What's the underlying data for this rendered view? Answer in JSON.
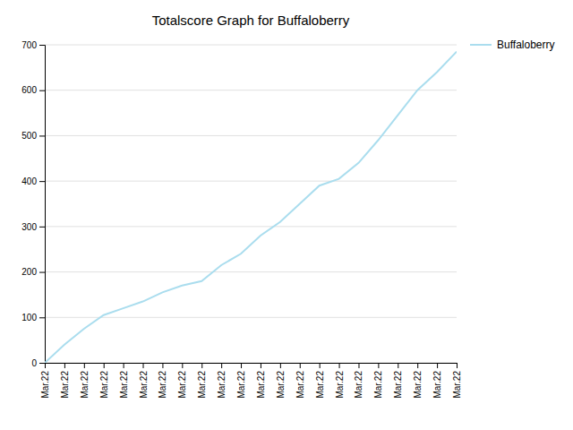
{
  "chart_data": {
    "type": "line",
    "title": "Totalscore Graph for Buffaloberry",
    "categories": [
      "Mar.22",
      "Mar.22",
      "Mar.22",
      "Mar.22",
      "Mar.22",
      "Mar.22",
      "Mar.22",
      "Mar.22",
      "Mar.22",
      "Mar.22",
      "Mar.22",
      "Mar.22",
      "Mar.22",
      "Mar.22",
      "Mar.22",
      "Mar.22",
      "Mar.22",
      "Mar.22",
      "Mar.22",
      "Mar.22",
      "Mar.22",
      "Mar.22"
    ],
    "series": [
      {
        "name": "Buffaloberry",
        "color": "#aaddee",
        "values": [
          0,
          40,
          75,
          105,
          120,
          135,
          155,
          170,
          180,
          215,
          240,
          280,
          310,
          350,
          390,
          405,
          440,
          490,
          545,
          600,
          640,
          685
        ]
      }
    ],
    "ylim": [
      0,
      700
    ],
    "yticks": [
      0,
      100,
      200,
      300,
      400,
      500,
      600,
      700
    ],
    "grid": true,
    "legend": "right"
  }
}
